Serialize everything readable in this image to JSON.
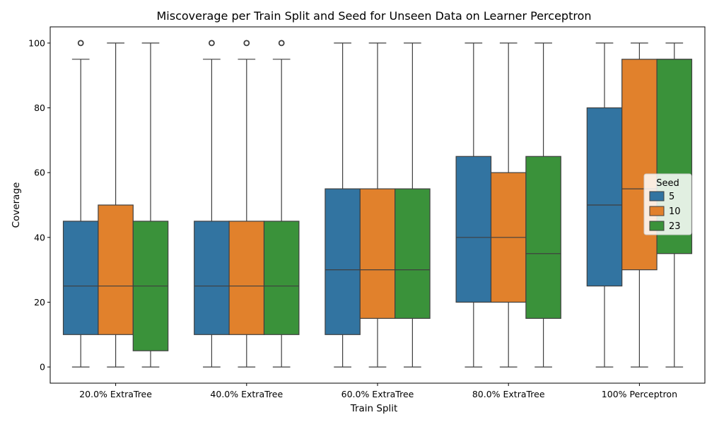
{
  "chart_data": {
    "type": "box",
    "title": "Miscoverage per Train Split and Seed for Unseen Data on Learner Perceptron",
    "xlabel": "Train Split",
    "ylabel": "Coverage",
    "ylim": [
      -5,
      105
    ],
    "yticks": [
      0,
      20,
      40,
      60,
      80,
      100
    ],
    "grid": false,
    "categories": [
      "20.0% ExtraTree",
      "40.0% ExtraTree",
      "60.0% ExtraTree",
      "80.0% ExtraTree",
      "100% Perceptron"
    ],
    "legend": {
      "title": "Seed",
      "placement": "center-right"
    },
    "series": [
      {
        "name": "5",
        "color": "#3274a1",
        "boxes": [
          {
            "whisker_low": 0,
            "q1": 10,
            "median": 25,
            "q3": 45,
            "whisker_high": 95,
            "outliers": [
              100
            ]
          },
          {
            "whisker_low": 0,
            "q1": 10,
            "median": 25,
            "q3": 45,
            "whisker_high": 95,
            "outliers": [
              100
            ]
          },
          {
            "whisker_low": 0,
            "q1": 10,
            "median": 30,
            "q3": 55,
            "whisker_high": 100,
            "outliers": []
          },
          {
            "whisker_low": 0,
            "q1": 20,
            "median": 40,
            "q3": 65,
            "whisker_high": 100,
            "outliers": []
          },
          {
            "whisker_low": 0,
            "q1": 25,
            "median": 50,
            "q3": 80,
            "whisker_high": 100,
            "outliers": []
          }
        ]
      },
      {
        "name": "10",
        "color": "#e1812c",
        "boxes": [
          {
            "whisker_low": 0,
            "q1": 10,
            "median": 25,
            "q3": 50,
            "whisker_high": 100,
            "outliers": []
          },
          {
            "whisker_low": 0,
            "q1": 10,
            "median": 25,
            "q3": 45,
            "whisker_high": 95,
            "outliers": [
              100
            ]
          },
          {
            "whisker_low": 0,
            "q1": 15,
            "median": 30,
            "q3": 55,
            "whisker_high": 100,
            "outliers": []
          },
          {
            "whisker_low": 0,
            "q1": 20,
            "median": 40,
            "q3": 60,
            "whisker_high": 100,
            "outliers": []
          },
          {
            "whisker_low": 0,
            "q1": 30,
            "median": 55,
            "q3": 95,
            "whisker_high": 100,
            "outliers": []
          }
        ]
      },
      {
        "name": "23",
        "color": "#3a923a",
        "boxes": [
          {
            "whisker_low": 0,
            "q1": 5,
            "median": 25,
            "q3": 45,
            "whisker_high": 100,
            "outliers": []
          },
          {
            "whisker_low": 0,
            "q1": 10,
            "median": 25,
            "q3": 45,
            "whisker_high": 95,
            "outliers": [
              100
            ]
          },
          {
            "whisker_low": 0,
            "q1": 15,
            "median": 30,
            "q3": 55,
            "whisker_high": 100,
            "outliers": []
          },
          {
            "whisker_low": 0,
            "q1": 15,
            "median": 35,
            "q3": 65,
            "whisker_high": 100,
            "outliers": []
          },
          {
            "whisker_low": 0,
            "q1": 35,
            "median": 95,
            "q3": 95,
            "whisker_high": 100,
            "outliers": []
          }
        ]
      }
    ]
  }
}
